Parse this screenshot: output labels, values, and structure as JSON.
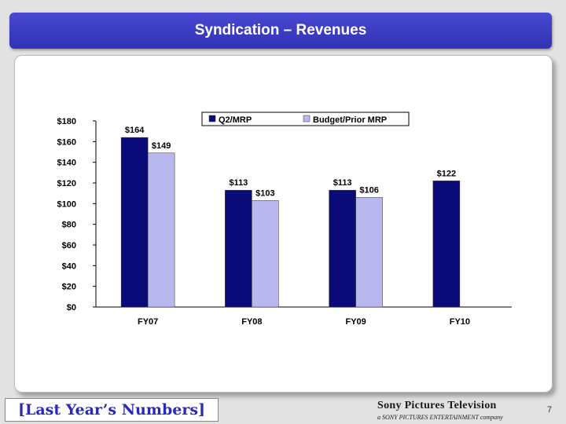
{
  "slide": {
    "title": "Syndication – Revenues",
    "footer_note": "[Last Year’s Numbers]",
    "brand_name": "Sony Pictures Television",
    "brand_sub": "a SONY PICTURES ENTERTAINMENT company",
    "page_number": "7"
  },
  "chart_data": {
    "type": "bar",
    "categories": [
      "FY07",
      "FY08",
      "FY09",
      "FY10"
    ],
    "series": [
      {
        "name": "Q2/MRP",
        "values": [
          164,
          113,
          113,
          122
        ],
        "labels": [
          "$164",
          "$113",
          "$113",
          "$122"
        ],
        "color": "#0a0a78"
      },
      {
        "name": "Budget/Prior MRP",
        "values": [
          149,
          103,
          106,
          null
        ],
        "labels": [
          "$149",
          "$103",
          "$106",
          ""
        ],
        "color": "#b8b8ef"
      }
    ],
    "ylim": [
      0,
      180
    ],
    "yticks": [
      "$0",
      "$20",
      "$40",
      "$60",
      "$80",
      "$100",
      "$120",
      "$140",
      "$160",
      "$180"
    ],
    "legend": "top-right",
    "grid": false
  }
}
